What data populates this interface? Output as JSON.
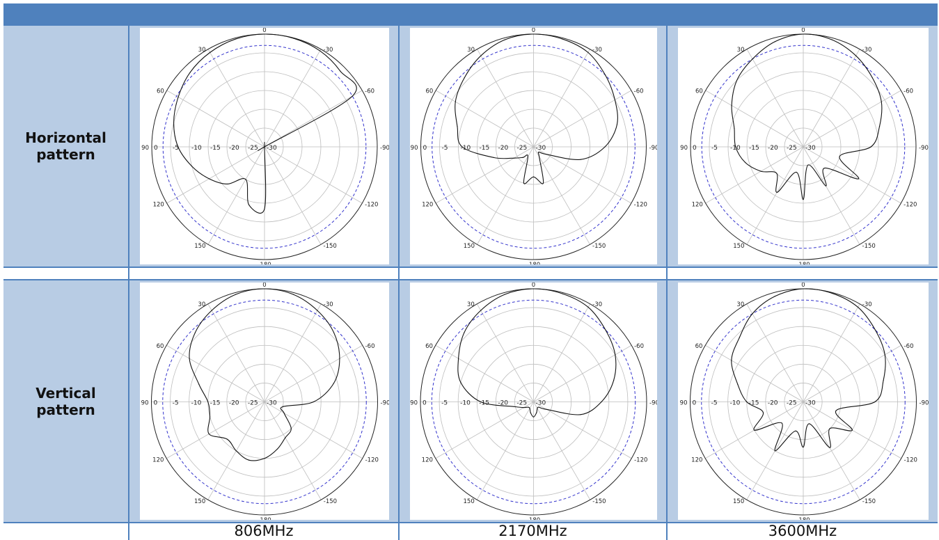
{
  "rows": [
    {
      "label_line1": "Horizontal",
      "label_line2": "pattern"
    },
    {
      "label_line1": "Vertical",
      "label_line2": "pattern"
    }
  ],
  "frequencies": [
    "806MHz",
    "2170MHz",
    "3600MHz"
  ],
  "colors": {
    "header": "#4f81bd",
    "border": "#4f81bd",
    "cell_fill": "#b8cce4",
    "grid": "#bdbdbd",
    "outer_ring": "#222222",
    "reference_ring": "#3333cc",
    "trace": "#111111"
  },
  "chart_data": [
    {
      "type": "polar",
      "row": "Horizontal pattern",
      "frequency": "806MHz",
      "r_ticks": [
        0,
        -5,
        -10,
        -15,
        -20,
        -25,
        -30
      ],
      "r_range": [
        -30,
        0
      ],
      "angle_ticks": [
        0,
        -30,
        -60,
        -90,
        -120,
        -150,
        -180,
        150,
        120,
        90,
        60,
        30
      ],
      "reference_level_db": -3,
      "grid": true,
      "series": [
        {
          "angle_deg": [
            0,
            15,
            30,
            45,
            60,
            75,
            90,
            105,
            120,
            135,
            150,
            165,
            180,
            195,
            210,
            225,
            240,
            255,
            270,
            285,
            300,
            315,
            330,
            345
          ],
          "gain_db": [
            0,
            -0.3,
            -1,
            -2,
            -3.5,
            -5,
            -7,
            -10,
            -13,
            -16,
            -20,
            -14,
            -13.5,
            -30,
            -30,
            -30,
            -30,
            -30,
            -30,
            -30,
            -3,
            -1.5,
            -0.5,
            -0.1
          ]
        }
      ]
    },
    {
      "type": "polar",
      "row": "Horizontal pattern",
      "frequency": "2170MHz",
      "r_ticks": [
        0,
        -5,
        -10,
        -15,
        -20,
        -25,
        -30
      ],
      "r_range": [
        -30,
        0
      ],
      "angle_ticks": [
        0,
        -30,
        -60,
        -90,
        -120,
        -150,
        -180,
        150,
        120,
        90,
        60,
        30
      ],
      "reference_level_db": -3,
      "grid": true,
      "series": [
        {
          "angle_deg": [
            0,
            15,
            30,
            45,
            60,
            75,
            90,
            105,
            120,
            135,
            150,
            165,
            180,
            195,
            210,
            225,
            240,
            255,
            270,
            285,
            300,
            315,
            330,
            345
          ],
          "gain_db": [
            0,
            -0.5,
            -2,
            -4,
            -6,
            -9,
            -11,
            -19,
            -24,
            -26,
            -27,
            -20,
            -22,
            -20,
            -27,
            -28,
            -26,
            -17,
            -11,
            -7,
            -5,
            -3,
            -1,
            -0.3
          ]
        }
      ]
    },
    {
      "type": "polar",
      "row": "Horizontal pattern",
      "frequency": "3600MHz",
      "r_ticks": [
        0,
        -5,
        -10,
        -15,
        -20,
        -25,
        -30
      ],
      "r_range": [
        -30,
        0
      ],
      "angle_ticks": [
        0,
        -30,
        -60,
        -90,
        -120,
        -150,
        -180,
        150,
        120,
        90,
        60,
        30
      ],
      "reference_level_db": -3,
      "grid": true,
      "series": [
        {
          "angle_deg": [
            0,
            15,
            30,
            45,
            60,
            75,
            90,
            105,
            120,
            135,
            150,
            165,
            180,
            195,
            210,
            225,
            240,
            255,
            270,
            285,
            300,
            315,
            330,
            345
          ],
          "gain_db": [
            0,
            -1,
            -3,
            -5,
            -8,
            -11,
            -12,
            -14,
            -17,
            -20,
            -16,
            -23,
            -16,
            -25,
            -18,
            -22,
            -13,
            -20,
            -12,
            -9,
            -6,
            -4,
            -2,
            -0.5
          ]
        }
      ]
    },
    {
      "type": "polar",
      "row": "Vertical pattern",
      "frequency": "806MHz",
      "r_ticks": [
        0,
        -5,
        -10,
        -15,
        -20,
        -25,
        -30
      ],
      "r_range": [
        -30,
        0
      ],
      "angle_ticks": [
        0,
        -30,
        -60,
        -90,
        -120,
        -150,
        -180,
        150,
        120,
        90,
        60,
        30
      ],
      "reference_level_db": -3,
      "grid": true,
      "series": [
        {
          "angle_deg": [
            0,
            15,
            30,
            45,
            60,
            75,
            90,
            105,
            120,
            135,
            150,
            165,
            180,
            195,
            210,
            225,
            240,
            255,
            270,
            285,
            300,
            315,
            330,
            345
          ],
          "gain_db": [
            0,
            -0.5,
            -2,
            -4,
            -7,
            -12,
            -15,
            -15,
            -13,
            -16,
            -15,
            -14,
            -15,
            -17,
            -19,
            -20,
            -24,
            -25,
            -17,
            -11,
            -7,
            -4,
            -2,
            -0.5
          ]
        }
      ]
    },
    {
      "type": "polar",
      "row": "Vertical pattern",
      "frequency": "2170MHz",
      "r_ticks": [
        0,
        -5,
        -10,
        -15,
        -20,
        -25,
        -30
      ],
      "r_range": [
        -30,
        0
      ],
      "angle_ticks": [
        0,
        -30,
        -60,
        -90,
        -120,
        -150,
        -180,
        150,
        120,
        90,
        60,
        30
      ],
      "reference_level_db": -3,
      "grid": true,
      "series": [
        {
          "angle_deg": [
            0,
            15,
            30,
            45,
            60,
            75,
            90,
            105,
            120,
            135,
            150,
            165,
            180,
            195,
            210,
            225,
            240,
            255,
            270,
            285,
            300,
            315,
            330,
            345
          ],
          "gain_db": [
            0,
            -0.5,
            -2,
            -4,
            -7,
            -10,
            -16,
            -25,
            -27,
            -28,
            -28,
            -27,
            -26,
            -27,
            -28,
            -28,
            -26,
            -17,
            -12,
            -8,
            -5,
            -3,
            -1,
            -0.3
          ]
        }
      ]
    },
    {
      "type": "polar",
      "row": "Vertical pattern",
      "frequency": "3600MHz",
      "r_ticks": [
        0,
        -5,
        -10,
        -15,
        -20,
        -25,
        -30
      ],
      "r_range": [
        -30,
        0
      ],
      "angle_ticks": [
        0,
        -30,
        -60,
        -90,
        -120,
        -150,
        -180,
        150,
        120,
        90,
        60,
        30
      ],
      "reference_level_db": -3,
      "grid": true,
      "series": [
        {
          "angle_deg": [
            0,
            15,
            30,
            45,
            60,
            75,
            90,
            105,
            120,
            135,
            150,
            165,
            180,
            195,
            210,
            225,
            240,
            255,
            270,
            285,
            300,
            315,
            330,
            345
          ],
          "gain_db": [
            0,
            -1,
            -3,
            -6,
            -8,
            -12,
            -15,
            -19,
            -15,
            -22,
            -15,
            -22,
            -18,
            -24,
            -16,
            -20,
            -15,
            -21,
            -11,
            -8,
            -5,
            -3,
            -1,
            -0.2
          ]
        }
      ]
    }
  ]
}
